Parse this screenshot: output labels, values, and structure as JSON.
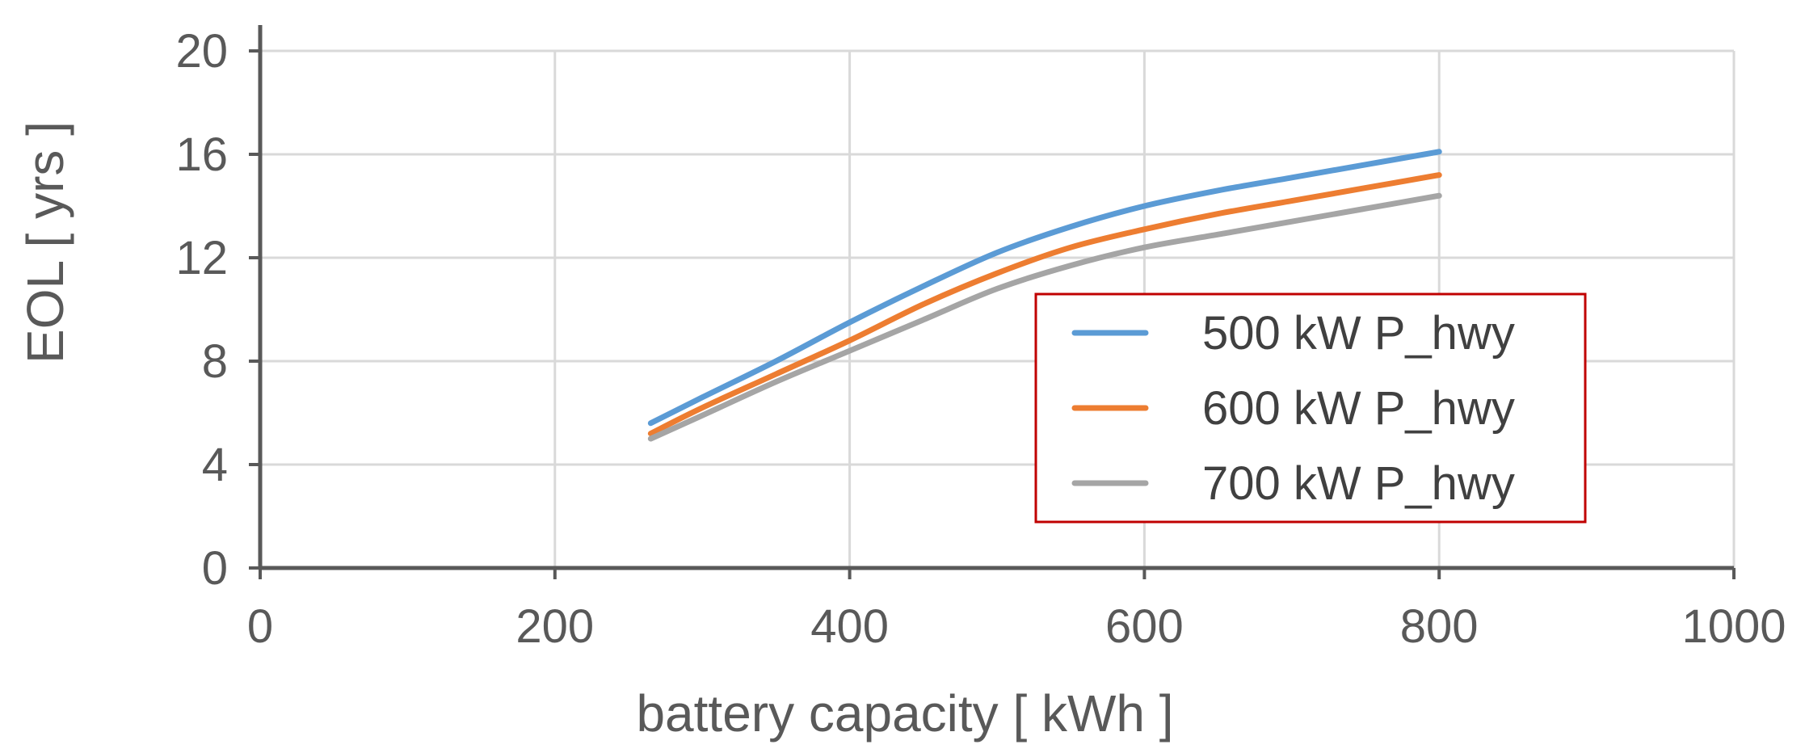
{
  "chart_data": {
    "type": "line",
    "xlabel": "battery capacity   [ kWh ]",
    "ylabel": "EOL  [ yrs ]",
    "xlim": [
      0,
      1000
    ],
    "ylim": [
      0,
      20
    ],
    "xticks": [
      "0",
      "200",
      "400",
      "600",
      "800",
      "1000"
    ],
    "yticks": [
      "0",
      "4",
      "8",
      "12",
      "16",
      "20"
    ],
    "grid": true,
    "legend_position": "right",
    "series": [
      {
        "name": "500 kW P_hwy",
        "color": "#5b9bd5",
        "x": [
          265,
          300,
          350,
          400,
          450,
          500,
          550,
          600,
          650,
          700,
          750,
          800
        ],
        "y": [
          5.6,
          6.6,
          8.0,
          9.5,
          10.9,
          12.2,
          13.2,
          14.0,
          14.6,
          15.1,
          15.6,
          16.1
        ]
      },
      {
        "name": "600 kW P_hwy",
        "color": "#ed7d31",
        "x": [
          265,
          300,
          350,
          400,
          450,
          500,
          550,
          600,
          650,
          700,
          750,
          800
        ],
        "y": [
          5.2,
          6.2,
          7.5,
          8.8,
          10.2,
          11.4,
          12.4,
          13.1,
          13.7,
          14.2,
          14.7,
          15.2
        ]
      },
      {
        "name": "700 kW P_hwy",
        "color": "#a5a5a5",
        "x": [
          265,
          300,
          350,
          400,
          450,
          500,
          550,
          600,
          650,
          700,
          750,
          800
        ],
        "y": [
          5.0,
          5.9,
          7.2,
          8.4,
          9.6,
          10.8,
          11.7,
          12.4,
          12.9,
          13.4,
          13.9,
          14.4
        ]
      }
    ]
  }
}
